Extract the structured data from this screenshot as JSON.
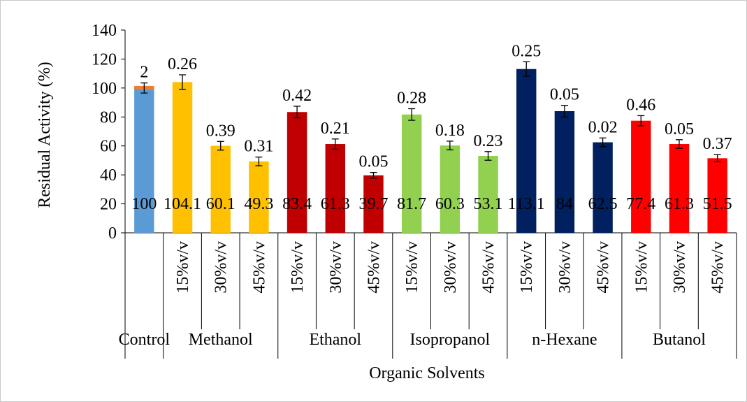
{
  "chart_data": {
    "type": "bar",
    "xlabel": "Organic Solvents",
    "ylabel": "Residual Activity (%)",
    "ylim": [
      0,
      140
    ],
    "ytick_step": 20,
    "grid": false,
    "legend": "none",
    "groups": [
      {
        "label": "Control",
        "bars": [
          {
            "sub": "",
            "value": 100,
            "value_label": "100",
            "err": 3.5,
            "err_label": "2",
            "color": "#5B9BD5",
            "cap_color": "#ED7D31"
          }
        ]
      },
      {
        "label": "Methanol",
        "bars": [
          {
            "sub": "15%v/v",
            "value": 104.1,
            "value_label": "104.1",
            "err": 5,
            "err_label": "0.26",
            "color": "#FFC000"
          },
          {
            "sub": "30%v/v",
            "value": 60.1,
            "value_label": "60.1",
            "err": 3,
            "err_label": "0.39",
            "color": "#FFC000"
          },
          {
            "sub": "45%v/v",
            "value": 49.3,
            "value_label": "49.3",
            "err": 3,
            "err_label": "0.31",
            "color": "#FFC000"
          }
        ]
      },
      {
        "label": "Ethanol",
        "bars": [
          {
            "sub": "15%v/v",
            "value": 83.4,
            "value_label": "83.4",
            "err": 4,
            "err_label": "0.42",
            "color": "#C00000"
          },
          {
            "sub": "30%v/v",
            "value": 61.3,
            "value_label": "61.3",
            "err": 3.5,
            "err_label": "0.21",
            "color": "#C00000"
          },
          {
            "sub": "45%v/v",
            "value": 39.7,
            "value_label": "39.7",
            "err": 2,
            "err_label": "0.05",
            "color": "#C00000"
          }
        ]
      },
      {
        "label": "Isopropanol",
        "bars": [
          {
            "sub": "15%v/v",
            "value": 81.7,
            "value_label": "81.7",
            "err": 4,
            "err_label": "0.28",
            "color": "#92D050"
          },
          {
            "sub": "30%v/v",
            "value": 60.3,
            "value_label": "60.3",
            "err": 3,
            "err_label": "0.18",
            "color": "#92D050"
          },
          {
            "sub": "45%v/v",
            "value": 53.1,
            "value_label": "53.1",
            "err": 3,
            "err_label": "0.23",
            "color": "#92D050"
          }
        ]
      },
      {
        "label": "n-Hexane",
        "bars": [
          {
            "sub": "15%v/v",
            "value": 113.1,
            "value_label": "113.1",
            "err": 5,
            "err_label": "0.25",
            "color": "#002060"
          },
          {
            "sub": "30%v/v",
            "value": 84,
            "value_label": "84",
            "err": 4,
            "err_label": "0.05",
            "color": "#002060"
          },
          {
            "sub": "45%v/v",
            "value": 62.5,
            "value_label": "62.5",
            "err": 3,
            "err_label": "0.02",
            "color": "#002060"
          }
        ]
      },
      {
        "label": "Butanol",
        "bars": [
          {
            "sub": "15%v/v",
            "value": 77.4,
            "value_label": "77.4",
            "err": 3.5,
            "err_label": "0.46",
            "color": "#FF0000"
          },
          {
            "sub": "30%v/v",
            "value": 61.3,
            "value_label": "61.3",
            "err": 3,
            "err_label": "0.05",
            "color": "#FF0000"
          },
          {
            "sub": "45%v/v",
            "value": 51.5,
            "value_label": "51.5",
            "err": 2.5,
            "err_label": "0.37",
            "color": "#FF0000"
          }
        ]
      }
    ]
  }
}
